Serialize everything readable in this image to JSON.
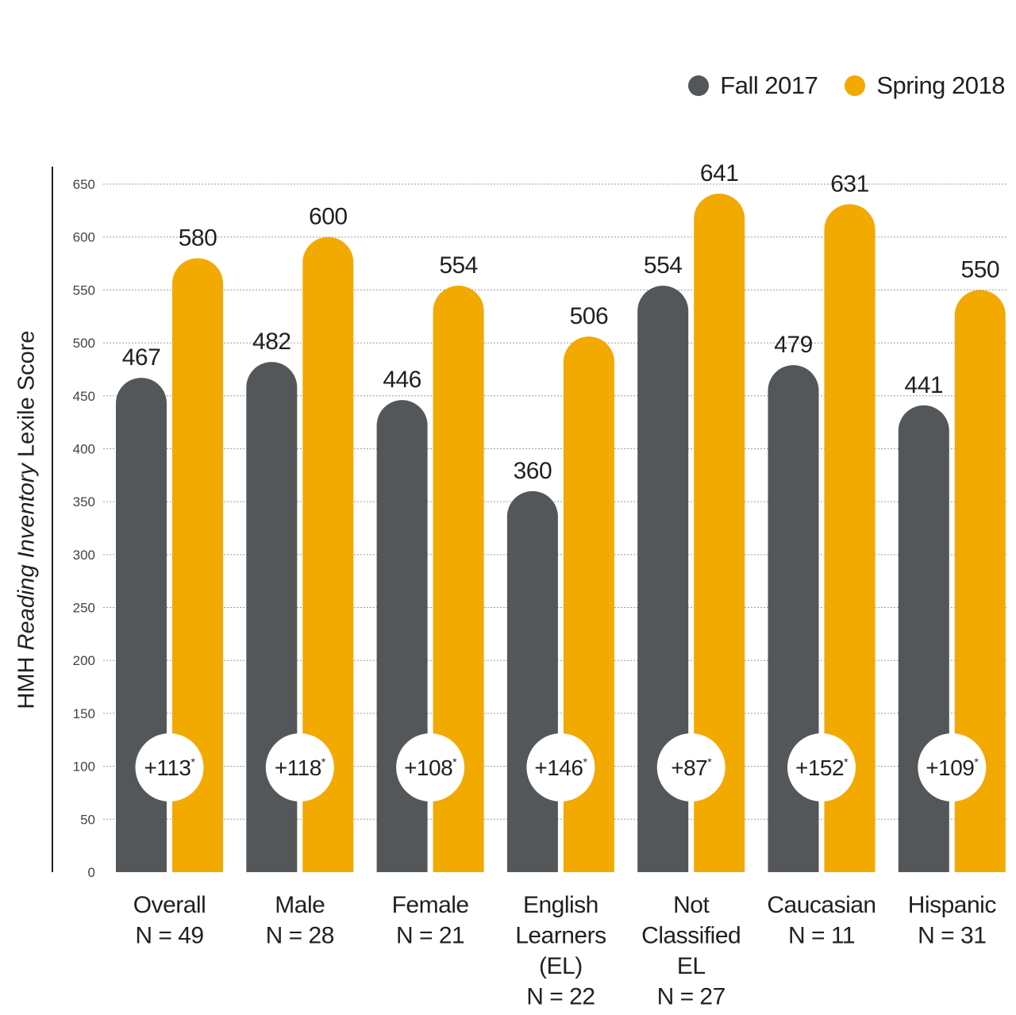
{
  "legend": {
    "fall": "Fall 2017",
    "spring": "Spring 2018"
  },
  "ylabel_parts": {
    "pre": "HMH ",
    "italic": "Reading Inventory",
    "post": " Lexile Score"
  },
  "colors": {
    "fall": "#54575a",
    "spring": "#f2a900",
    "grid": "#9a9a9a",
    "axis": "#231f20"
  },
  "chart_data": {
    "type": "bar",
    "title": "",
    "xlabel": "",
    "ylabel": "HMH Reading Inventory Lexile Score",
    "ylim": [
      0,
      650
    ],
    "yticks": [
      0,
      50,
      100,
      150,
      200,
      250,
      300,
      350,
      400,
      450,
      500,
      550,
      600,
      650
    ],
    "grid": true,
    "legend_position": "top-right",
    "categories": [
      [
        "Overall",
        "N = 49"
      ],
      [
        "Male",
        "N = 28"
      ],
      [
        "Female",
        "N = 21"
      ],
      [
        "English",
        "Learners",
        "(EL)",
        "N = 22"
      ],
      [
        "Not",
        "Classified",
        "EL",
        "N = 27"
      ],
      [
        "Caucasian",
        "N = 11"
      ],
      [
        "Hispanic",
        "N = 31"
      ]
    ],
    "series": [
      {
        "name": "Fall 2017",
        "values": [
          467,
          482,
          446,
          360,
          554,
          479,
          441
        ]
      },
      {
        "name": "Spring 2018",
        "values": [
          580,
          600,
          554,
          506,
          641,
          631,
          550
        ]
      }
    ],
    "gains": [
      "+113",
      "+118",
      "+108",
      "+146",
      "+87",
      "+152",
      "+109"
    ],
    "gain_marker": "*"
  }
}
